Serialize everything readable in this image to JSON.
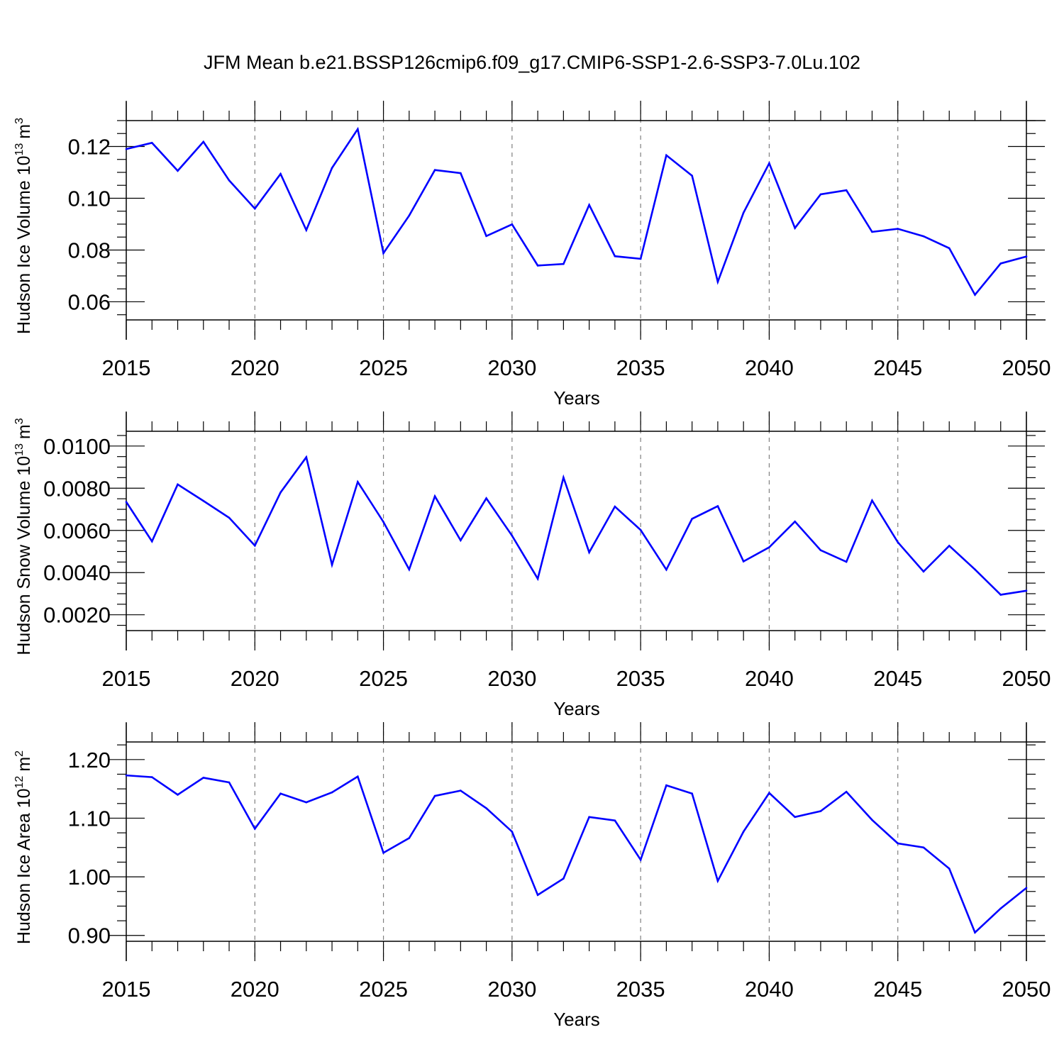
{
  "figure": {
    "title": "JFM Mean b.e21.BSSP126cmip6.f09_g17.CMIP6-SSP1-2.6-SSP3-7.0Lu.102",
    "line_color": "#0000ff",
    "grid_color": "#808080"
  },
  "chart_data": [
    {
      "type": "line",
      "title": "JFM Mean b.e21.BSSP126cmip6.f09_g17.CMIP6-SSP1-2.6-SSP3-7.0Lu.102",
      "xlabel": "Years",
      "ylabel": "Hudson Ice Volume 10",
      "ylabel_sup": "13",
      "ylabel_unit": "m",
      "ylabel_unit_sup": "3",
      "xlim": [
        2015,
        2050
      ],
      "ylim": [
        0.053,
        0.13
      ],
      "x_ticks": [
        2015,
        2020,
        2025,
        2030,
        2035,
        2040,
        2045,
        2050
      ],
      "x_tick_labels": [
        "2015",
        "2020",
        "2025",
        "2030",
        "2035",
        "2040",
        "2045",
        "2050"
      ],
      "y_ticks": [
        0.06,
        0.08,
        0.1,
        0.12
      ],
      "y_tick_labels": [
        "0.06",
        "0.08",
        "0.10",
        "0.12"
      ],
      "vertical_grid": true,
      "x": [
        2015,
        2016,
        2017,
        2018,
        2019,
        2020,
        2021,
        2022,
        2023,
        2024,
        2025,
        2026,
        2027,
        2028,
        2029,
        2030,
        2031,
        2032,
        2033,
        2034,
        2035,
        2036,
        2037,
        2038,
        2039,
        2040,
        2041,
        2042,
        2043,
        2044,
        2045,
        2046,
        2047,
        2048,
        2049,
        2050
      ],
      "values": [
        0.119,
        0.1214,
        0.1106,
        0.1218,
        0.1069,
        0.096,
        0.1094,
        0.0877,
        0.1117,
        0.1267,
        0.0788,
        0.0933,
        0.1109,
        0.1097,
        0.0854,
        0.0899,
        0.074,
        0.0746,
        0.0974,
        0.0776,
        0.0766,
        0.1166,
        0.1087,
        0.0677,
        0.0944,
        0.1135,
        0.0885,
        0.1015,
        0.1031,
        0.087,
        0.0882,
        0.0853,
        0.0807,
        0.0627,
        0.0748,
        0.0775
      ]
    },
    {
      "type": "line",
      "xlabel": "Years",
      "ylabel": "Hudson Snow Volume 10",
      "ylabel_sup": "13",
      "ylabel_unit": "m",
      "ylabel_unit_sup": "3",
      "xlim": [
        2015,
        2050
      ],
      "ylim": [
        0.00125,
        0.0107
      ],
      "x_ticks": [
        2015,
        2020,
        2025,
        2030,
        2035,
        2040,
        2045,
        2050
      ],
      "x_tick_labels": [
        "2015",
        "2020",
        "2025",
        "2030",
        "2035",
        "2040",
        "2045",
        "2050"
      ],
      "y_ticks": [
        0.002,
        0.004,
        0.006,
        0.008,
        0.01
      ],
      "y_tick_labels": [
        "0.0020",
        "0.0040",
        "0.0060",
        "0.0080",
        "0.0100"
      ],
      "vertical_grid": true,
      "x": [
        2015,
        2016,
        2017,
        2018,
        2019,
        2020,
        2021,
        2022,
        2023,
        2024,
        2025,
        2026,
        2027,
        2028,
        2029,
        2030,
        2031,
        2032,
        2033,
        2034,
        2035,
        2036,
        2037,
        2038,
        2039,
        2040,
        2041,
        2042,
        2043,
        2044,
        2045,
        2046,
        2047,
        2048,
        2049,
        2050
      ],
      "values": [
        0.00735,
        0.00548,
        0.00818,
        0.0074,
        0.0066,
        0.00528,
        0.0078,
        0.00947,
        0.00437,
        0.0083,
        0.0064,
        0.00415,
        0.00762,
        0.00553,
        0.00752,
        0.00575,
        0.00371,
        0.00851,
        0.00496,
        0.00713,
        0.00602,
        0.00414,
        0.00655,
        0.00715,
        0.00453,
        0.0052,
        0.00642,
        0.00506,
        0.00451,
        0.00742,
        0.00544,
        0.00405,
        0.00527,
        0.00415,
        0.00295,
        0.00314
      ]
    },
    {
      "type": "line",
      "xlabel": "Years",
      "ylabel": "Hudson Ice Area 10",
      "ylabel_sup": "12",
      "ylabel_unit": "m",
      "ylabel_unit_sup": "2",
      "xlim": [
        2015,
        2050
      ],
      "ylim": [
        0.89,
        1.23
      ],
      "x_ticks": [
        2015,
        2020,
        2025,
        2030,
        2035,
        2040,
        2045,
        2050
      ],
      "x_tick_labels": [
        "2015",
        "2020",
        "2025",
        "2030",
        "2035",
        "2040",
        "2045",
        "2050"
      ],
      "y_ticks": [
        0.9,
        1.0,
        1.1,
        1.2
      ],
      "y_tick_labels": [
        "0.90",
        "1.00",
        "1.10",
        "1.20"
      ],
      "vertical_grid": true,
      "x": [
        2015,
        2016,
        2017,
        2018,
        2019,
        2020,
        2021,
        2022,
        2023,
        2024,
        2025,
        2026,
        2027,
        2028,
        2029,
        2030,
        2031,
        2032,
        2033,
        2034,
        2035,
        2036,
        2037,
        2038,
        2039,
        2040,
        2041,
        2042,
        2043,
        2044,
        2045,
        2046,
        2047,
        2048,
        2049,
        2050
      ],
      "values": [
        1.173,
        1.17,
        1.14,
        1.169,
        1.161,
        1.082,
        1.142,
        1.127,
        1.144,
        1.171,
        1.041,
        1.066,
        1.138,
        1.147,
        1.117,
        1.077,
        0.969,
        0.997,
        1.102,
        1.096,
        1.029,
        1.156,
        1.142,
        0.993,
        1.077,
        1.143,
        1.102,
        1.112,
        1.145,
        1.097,
        1.057,
        1.05,
        1.014,
        0.905,
        0.946,
        0.981
      ]
    }
  ]
}
